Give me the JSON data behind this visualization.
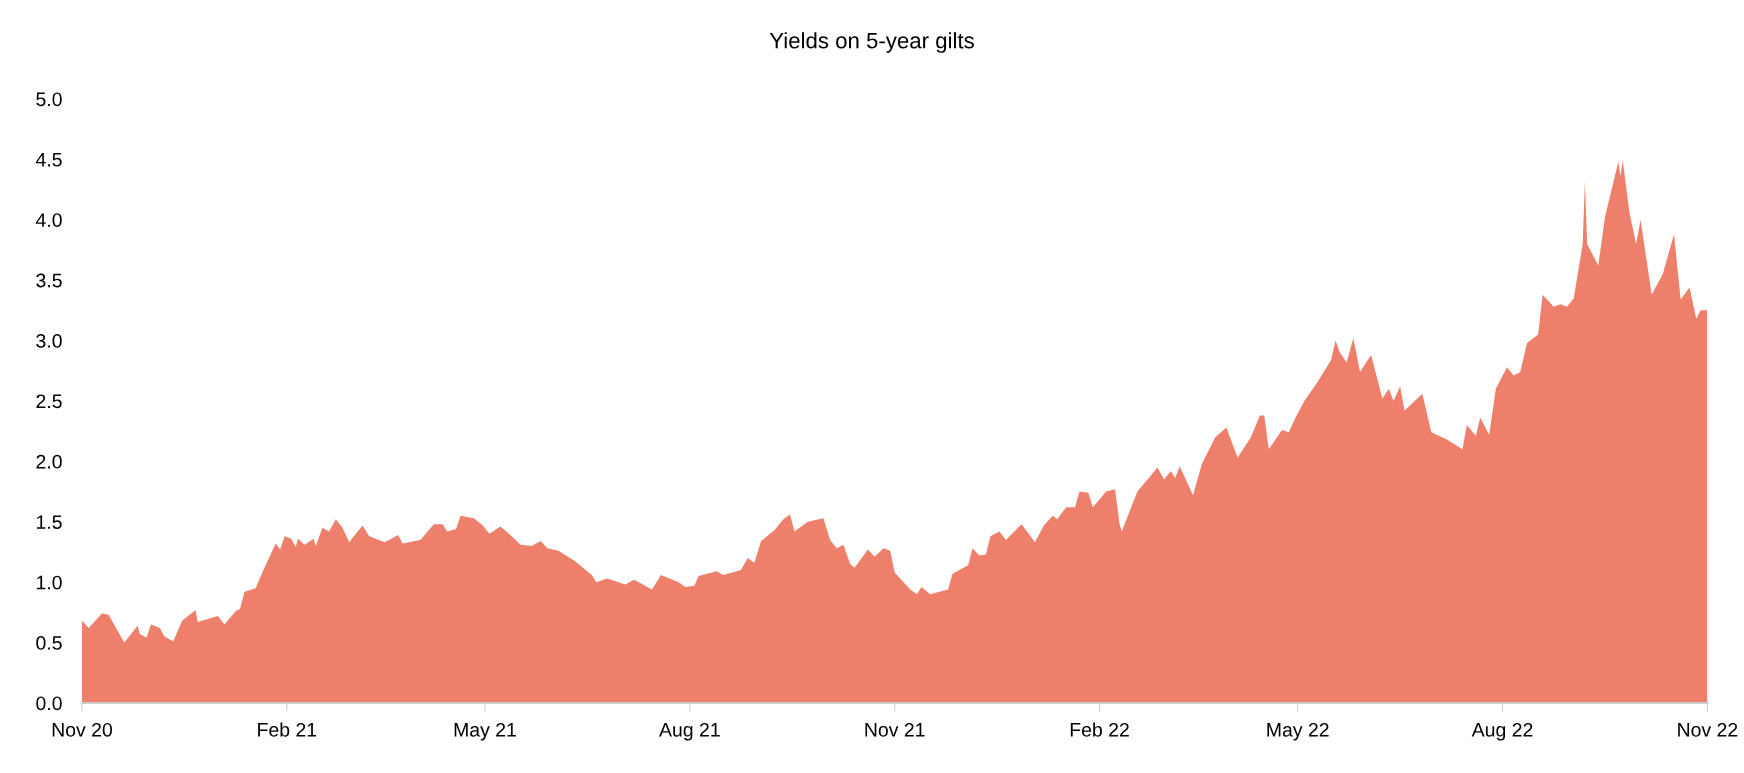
{
  "chart_data": {
    "type": "area",
    "title": "Yields on 5-year gilts",
    "x": [
      "2020-11-01",
      "2020-11-04",
      "2020-11-10",
      "2020-11-13",
      "2020-11-16",
      "2020-11-20",
      "2020-11-26",
      "2020-11-27",
      "2020-11-30",
      "2020-12-02",
      "2020-12-06",
      "2020-12-08",
      "2020-12-12",
      "2020-12-16",
      "2020-12-22",
      "2020-12-23",
      "2021-01-01",
      "2021-01-04",
      "2021-01-09",
      "2021-01-11",
      "2021-01-13",
      "2021-01-18",
      "2021-01-21",
      "2021-01-24",
      "2021-01-27",
      "2021-01-29",
      "2021-01-31",
      "2021-02-03",
      "2021-02-05",
      "2021-02-06",
      "2021-02-09",
      "2021-02-13",
      "2021-02-14",
      "2021-02-17",
      "2021-02-20",
      "2021-02-23",
      "2021-02-26",
      "2021-03-01",
      "2021-03-07",
      "2021-03-10",
      "2021-03-17",
      "2021-03-23",
      "2021-03-25",
      "2021-04-02",
      "2021-04-08",
      "2021-04-12",
      "2021-04-14",
      "2021-04-18",
      "2021-04-20",
      "2021-04-26",
      "2021-04-30",
      "2021-05-03",
      "2021-05-08",
      "2021-05-13",
      "2021-05-17",
      "2021-05-22",
      "2021-05-26",
      "2021-05-29",
      "2021-06-03",
      "2021-06-10",
      "2021-06-18",
      "2021-06-20",
      "2021-06-25",
      "2021-07-03",
      "2021-07-07",
      "2021-07-15",
      "2021-07-19",
      "2021-07-27",
      "2021-07-30",
      "2021-08-03",
      "2021-08-05",
      "2021-08-13",
      "2021-08-16",
      "2021-08-24",
      "2021-08-27",
      "2021-08-30",
      "2021-09-02",
      "2021-09-08",
      "2021-09-12",
      "2021-09-15",
      "2021-09-17",
      "2021-09-23",
      "2021-09-30",
      "2021-10-03",
      "2021-10-06",
      "2021-10-09",
      "2021-10-12",
      "2021-10-14",
      "2021-10-20",
      "2021-10-23",
      "2021-10-27",
      "2021-10-30",
      "2021-11-01",
      "2021-11-08",
      "2021-11-11",
      "2021-11-13",
      "2021-11-17",
      "2021-11-25",
      "2021-11-27",
      "2021-12-04",
      "2021-12-06",
      "2021-12-09",
      "2021-12-12",
      "2021-12-14",
      "2021-12-18",
      "2021-12-21",
      "2021-12-28",
      "2022-01-03",
      "2022-01-07",
      "2022-01-11",
      "2022-01-13",
      "2022-01-17",
      "2022-01-21",
      "2022-01-23",
      "2022-01-27",
      "2022-01-29",
      "2022-02-04",
      "2022-02-08",
      "2022-02-10",
      "2022-02-11",
      "2022-02-18",
      "2022-02-24",
      "2022-02-27",
      "2022-03-02",
      "2022-03-05",
      "2022-03-07",
      "2022-03-09",
      "2022-03-15",
      "2022-03-19",
      "2022-03-25",
      "2022-03-30",
      "2022-04-04",
      "2022-04-10",
      "2022-04-14",
      "2022-04-16",
      "2022-04-18",
      "2022-04-24",
      "2022-04-27",
      "2022-04-30",
      "2022-05-04",
      "2022-05-10",
      "2022-05-16",
      "2022-05-18",
      "2022-05-20",
      "2022-05-23",
      "2022-05-26",
      "2022-05-29",
      "2022-06-03",
      "2022-06-08",
      "2022-06-11",
      "2022-06-13",
      "2022-06-16",
      "2022-06-18",
      "2022-06-26",
      "2022-06-30",
      "2022-07-07",
      "2022-07-14",
      "2022-07-16",
      "2022-07-20",
      "2022-07-22",
      "2022-07-26",
      "2022-07-29",
      "2022-08-03",
      "2022-08-06",
      "2022-08-09",
      "2022-08-12",
      "2022-08-17",
      "2022-08-19",
      "2022-08-24",
      "2022-08-27",
      "2022-08-30",
      "2022-09-02",
      "2022-09-06",
      "2022-09-07",
      "2022-09-08",
      "2022-09-13",
      "2022-09-16",
      "2022-09-22",
      "2022-09-23",
      "2022-09-24",
      "2022-09-27",
      "2022-09-30",
      "2022-10-02",
      "2022-10-07",
      "2022-10-12",
      "2022-10-17",
      "2022-10-20",
      "2022-10-24",
      "2022-10-27",
      "2022-10-29",
      "2022-11-01"
    ],
    "series": [
      {
        "color": "#ee7f6a",
        "values": [
          0.68,
          0.62,
          0.74,
          0.73,
          0.63,
          0.5,
          0.64,
          0.57,
          0.54,
          0.65,
          0.62,
          0.55,
          0.51,
          0.68,
          0.77,
          0.67,
          0.72,
          0.65,
          0.76,
          0.78,
          0.92,
          0.95,
          1.08,
          1.2,
          1.32,
          1.27,
          1.38,
          1.36,
          1.29,
          1.36,
          1.31,
          1.36,
          1.3,
          1.45,
          1.42,
          1.52,
          1.45,
          1.33,
          1.47,
          1.38,
          1.33,
          1.39,
          1.32,
          1.35,
          1.48,
          1.48,
          1.42,
          1.44,
          1.55,
          1.53,
          1.47,
          1.4,
          1.46,
          1.38,
          1.31,
          1.3,
          1.34,
          1.28,
          1.26,
          1.18,
          1.06,
          1.0,
          1.03,
          0.98,
          1.02,
          0.94,
          1.06,
          1.0,
          0.96,
          0.97,
          1.05,
          1.09,
          1.06,
          1.1,
          1.2,
          1.16,
          1.34,
          1.43,
          1.52,
          1.56,
          1.42,
          1.5,
          1.53,
          1.35,
          1.28,
          1.31,
          1.15,
          1.12,
          1.27,
          1.21,
          1.28,
          1.26,
          1.08,
          0.94,
          0.9,
          0.96,
          0.9,
          0.94,
          1.07,
          1.14,
          1.28,
          1.22,
          1.23,
          1.38,
          1.42,
          1.35,
          1.48,
          1.33,
          1.47,
          1.55,
          1.52,
          1.62,
          1.62,
          1.75,
          1.74,
          1.62,
          1.75,
          1.77,
          1.48,
          1.42,
          1.75,
          1.88,
          1.95,
          1.85,
          1.92,
          1.86,
          1.96,
          1.72,
          1.98,
          2.2,
          2.28,
          2.03,
          2.2,
          2.38,
          2.38,
          2.1,
          2.26,
          2.24,
          2.36,
          2.5,
          2.66,
          2.84,
          3.0,
          2.9,
          2.82,
          3.02,
          2.74,
          2.88,
          2.52,
          2.6,
          2.5,
          2.62,
          2.42,
          2.56,
          2.24,
          2.18,
          2.1,
          2.3,
          2.21,
          2.36,
          2.22,
          2.6,
          2.78,
          2.71,
          2.74,
          2.98,
          3.05,
          3.38,
          3.28,
          3.3,
          3.28,
          3.35,
          3.8,
          4.32,
          3.8,
          3.62,
          4.02,
          4.48,
          4.36,
          4.49,
          4.06,
          3.8,
          4.0,
          3.38,
          3.55,
          3.88,
          3.34,
          3.44,
          3.18,
          3.25,
          3.25
        ]
      }
    ],
    "xlim": [
      "2020-11-01",
      "2022-11-01"
    ],
    "xticks": [
      {
        "value": "2020-11-01",
        "label": "Nov 20"
      },
      {
        "value": "2021-02-01",
        "label": "Feb 21"
      },
      {
        "value": "2021-05-01",
        "label": "May 21"
      },
      {
        "value": "2021-08-01",
        "label": "Aug 21"
      },
      {
        "value": "2021-11-01",
        "label": "Nov 21"
      },
      {
        "value": "2022-02-01",
        "label": "Feb 22"
      },
      {
        "value": "2022-05-01",
        "label": "May 22"
      },
      {
        "value": "2022-08-01",
        "label": "Aug 22"
      },
      {
        "value": "2022-11-01",
        "label": "Nov 22"
      }
    ],
    "ylim": [
      0,
      5
    ],
    "yticks": [
      {
        "value": 0,
        "label": "0.0"
      },
      {
        "value": 0.5,
        "label": "0.5"
      },
      {
        "value": 1,
        "label": "1.0"
      },
      {
        "value": 1.5,
        "label": "1.5"
      },
      {
        "value": 2,
        "label": "2.0"
      },
      {
        "value": 2.5,
        "label": "2.5"
      },
      {
        "value": 3,
        "label": "3.0"
      },
      {
        "value": 3.5,
        "label": "3.5"
      },
      {
        "value": 4,
        "label": "4.0"
      },
      {
        "value": 4.5,
        "label": "4.5"
      },
      {
        "value": 5,
        "label": "5.0"
      }
    ],
    "grid": false
  }
}
